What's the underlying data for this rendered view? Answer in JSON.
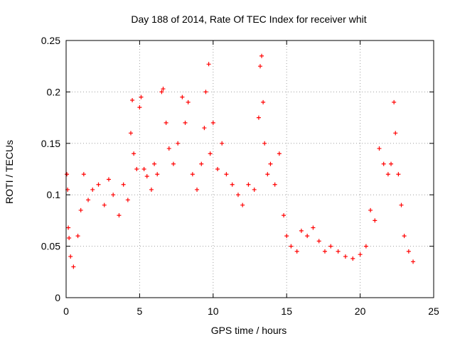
{
  "chart_data": {
    "type": "scatter",
    "title": "Day 188 of 2014, Rate Of TEC Index for receiver whit",
    "xlabel": "GPS time / hours",
    "ylabel": "ROTI / TECUs",
    "xlim": [
      0,
      25
    ],
    "ylim": [
      0,
      0.25
    ],
    "x_ticks": [
      0,
      5,
      10,
      15,
      20,
      25
    ],
    "x_tick_labels": [
      "0",
      "5",
      "10",
      "15",
      "20",
      "25"
    ],
    "y_ticks": [
      0,
      0.05,
      0.1,
      0.15,
      0.2,
      0.25
    ],
    "y_tick_labels": [
      "0",
      "0.05",
      "0.1",
      "0.15",
      "0.2",
      "0.25"
    ],
    "grid": true,
    "marker": "+",
    "series": [
      {
        "color": "#ff0000",
        "points": [
          [
            0.05,
            0.12
          ],
          [
            0.1,
            0.105
          ],
          [
            0.15,
            0.068
          ],
          [
            0.2,
            0.058
          ],
          [
            0.3,
            0.04
          ],
          [
            0.5,
            0.03
          ],
          [
            0.8,
            0.06
          ],
          [
            1.0,
            0.085
          ],
          [
            1.2,
            0.12
          ],
          [
            1.5,
            0.095
          ],
          [
            1.8,
            0.105
          ],
          [
            2.2,
            0.11
          ],
          [
            2.6,
            0.09
          ],
          [
            2.9,
            0.115
          ],
          [
            3.2,
            0.1
          ],
          [
            3.6,
            0.08
          ],
          [
            3.9,
            0.11
          ],
          [
            4.2,
            0.095
          ],
          [
            4.4,
            0.16
          ],
          [
            4.5,
            0.192
          ],
          [
            4.6,
            0.14
          ],
          [
            4.8,
            0.125
          ],
          [
            5.0,
            0.185
          ],
          [
            5.1,
            0.195
          ],
          [
            5.3,
            0.125
          ],
          [
            5.5,
            0.118
          ],
          [
            5.8,
            0.105
          ],
          [
            6.0,
            0.13
          ],
          [
            6.2,
            0.12
          ],
          [
            6.5,
            0.2
          ],
          [
            6.6,
            0.203
          ],
          [
            6.8,
            0.17
          ],
          [
            7.0,
            0.145
          ],
          [
            7.3,
            0.13
          ],
          [
            7.6,
            0.15
          ],
          [
            7.9,
            0.195
          ],
          [
            8.1,
            0.17
          ],
          [
            8.3,
            0.19
          ],
          [
            8.6,
            0.12
          ],
          [
            8.9,
            0.105
          ],
          [
            9.2,
            0.13
          ],
          [
            9.4,
            0.165
          ],
          [
            9.5,
            0.2
          ],
          [
            9.7,
            0.227
          ],
          [
            9.8,
            0.14
          ],
          [
            10.0,
            0.17
          ],
          [
            10.3,
            0.125
          ],
          [
            10.6,
            0.15
          ],
          [
            10.9,
            0.12
          ],
          [
            11.3,
            0.11
          ],
          [
            11.7,
            0.1
          ],
          [
            12.0,
            0.09
          ],
          [
            12.4,
            0.11
          ],
          [
            12.8,
            0.105
          ],
          [
            13.1,
            0.175
          ],
          [
            13.2,
            0.225
          ],
          [
            13.3,
            0.235
          ],
          [
            13.4,
            0.19
          ],
          [
            13.5,
            0.15
          ],
          [
            13.7,
            0.12
          ],
          [
            13.9,
            0.13
          ],
          [
            14.2,
            0.11
          ],
          [
            14.5,
            0.14
          ],
          [
            14.8,
            0.08
          ],
          [
            15.0,
            0.06
          ],
          [
            15.3,
            0.05
          ],
          [
            15.7,
            0.045
          ],
          [
            16.0,
            0.065
          ],
          [
            16.4,
            0.06
          ],
          [
            16.8,
            0.068
          ],
          [
            17.2,
            0.055
          ],
          [
            17.6,
            0.045
          ],
          [
            18.0,
            0.05
          ],
          [
            18.5,
            0.045
          ],
          [
            19.0,
            0.04
          ],
          [
            19.5,
            0.038
          ],
          [
            20.0,
            0.042
          ],
          [
            20.4,
            0.05
          ],
          [
            20.7,
            0.085
          ],
          [
            21.0,
            0.075
          ],
          [
            21.3,
            0.145
          ],
          [
            21.6,
            0.13
          ],
          [
            21.9,
            0.12
          ],
          [
            22.1,
            0.13
          ],
          [
            22.3,
            0.19
          ],
          [
            22.4,
            0.16
          ],
          [
            22.6,
            0.12
          ],
          [
            22.8,
            0.09
          ],
          [
            23.0,
            0.06
          ],
          [
            23.3,
            0.045
          ],
          [
            23.6,
            0.035
          ]
        ]
      }
    ]
  }
}
